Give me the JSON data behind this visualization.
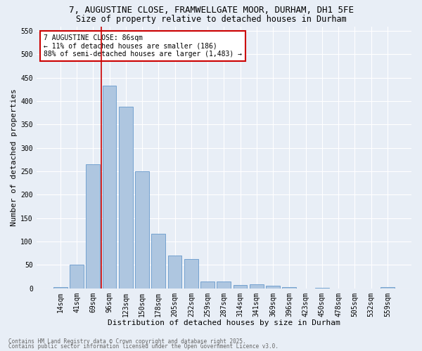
{
  "title1": "7, AUGUSTINE CLOSE, FRAMWELLGATE MOOR, DURHAM, DH1 5FE",
  "title2": "Size of property relative to detached houses in Durham",
  "xlabel": "Distribution of detached houses by size in Durham",
  "ylabel": "Number of detached properties",
  "bar_color": "#aec6e0",
  "bar_edge_color": "#6699cc",
  "categories": [
    "14sqm",
    "41sqm",
    "69sqm",
    "96sqm",
    "123sqm",
    "150sqm",
    "178sqm",
    "205sqm",
    "232sqm",
    "259sqm",
    "287sqm",
    "314sqm",
    "341sqm",
    "369sqm",
    "396sqm",
    "423sqm",
    "450sqm",
    "478sqm",
    "505sqm",
    "532sqm",
    "559sqm"
  ],
  "values": [
    3,
    50,
    265,
    433,
    388,
    250,
    117,
    70,
    62,
    15,
    14,
    7,
    8,
    5,
    2,
    0,
    1,
    0,
    0,
    0,
    2
  ],
  "ylim": [
    0,
    560
  ],
  "yticks": [
    0,
    50,
    100,
    150,
    200,
    250,
    300,
    350,
    400,
    450,
    500,
    550
  ],
  "vline_color": "#cc0000",
  "vline_x": 2.5,
  "annotation_text": "7 AUGUSTINE CLOSE: 86sqm\n← 11% of detached houses are smaller (186)\n88% of semi-detached houses are larger (1,483) →",
  "annotation_box_color": "#ffffff",
  "annotation_box_edge": "#cc0000",
  "footer1": "Contains HM Land Registry data © Crown copyright and database right 2025.",
  "footer2": "Contains public sector information licensed under the Open Government Licence v3.0.",
  "background_color": "#e8eef6",
  "plot_background": "#e8eef6",
  "grid_color": "#ffffff",
  "title1_fontsize": 9,
  "title2_fontsize": 8.5,
  "axis_label_fontsize": 8,
  "tick_fontsize": 7,
  "footer_fontsize": 5.5
}
